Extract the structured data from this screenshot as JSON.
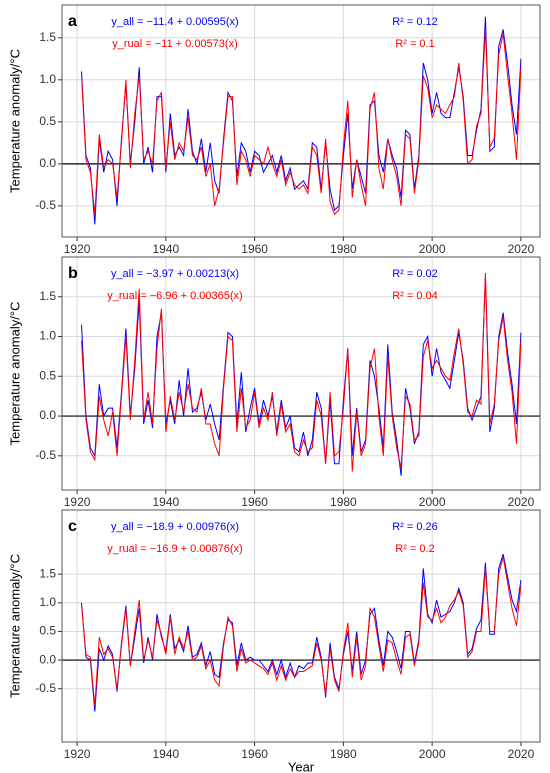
{
  "chart_data": [
    {
      "type": "line",
      "label": "a",
      "ylabel": "Temperature anomaly/°C",
      "x": [
        1921,
        1922,
        1923,
        1924,
        1925,
        1926,
        1927,
        1928,
        1929,
        1930,
        1931,
        1932,
        1933,
        1934,
        1935,
        1936,
        1937,
        1938,
        1939,
        1940,
        1941,
        1942,
        1943,
        1944,
        1945,
        1946,
        1947,
        1948,
        1949,
        1950,
        1951,
        1952,
        1953,
        1954,
        1955,
        1956,
        1957,
        1958,
        1959,
        1960,
        1961,
        1962,
        1963,
        1964,
        1965,
        1966,
        1967,
        1968,
        1969,
        1970,
        1971,
        1972,
        1973,
        1974,
        1975,
        1976,
        1977,
        1978,
        1979,
        1980,
        1981,
        1982,
        1983,
        1984,
        1985,
        1986,
        1987,
        1988,
        1989,
        1990,
        1991,
        1992,
        1993,
        1994,
        1995,
        1996,
        1997,
        1998,
        1999,
        2000,
        2001,
        2002,
        2003,
        2004,
        2005,
        2006,
        2007,
        2008,
        2009,
        2010,
        2011,
        2012,
        2013,
        2014,
        2015,
        2016,
        2017,
        2018,
        2019,
        2020
      ],
      "series": [
        {
          "name": "y_all",
          "color": "#0000ff",
          "values": [
            1.1,
            0.1,
            -0.05,
            -0.72,
            0.3,
            -0.1,
            0.15,
            0.05,
            -0.5,
            0.3,
            0.95,
            0.0,
            0.5,
            1.15,
            0.0,
            0.2,
            -0.1,
            0.8,
            0.8,
            -0.1,
            0.6,
            0.1,
            0.2,
            0.1,
            0.65,
            0.15,
            0.0,
            0.3,
            -0.1,
            0.25,
            -0.2,
            -0.35,
            0.3,
            0.85,
            0.75,
            -0.15,
            0.25,
            0.15,
            -0.1,
            0.15,
            0.1,
            -0.1,
            0.0,
            0.1,
            -0.1,
            0.1,
            -0.2,
            -0.05,
            -0.3,
            -0.25,
            -0.2,
            -0.3,
            0.25,
            0.2,
            -0.3,
            0.25,
            -0.3,
            -0.55,
            -0.5,
            0.1,
            0.6,
            -0.3,
            0.05,
            -0.15,
            -0.35,
            0.7,
            0.75,
            0.1,
            -0.1,
            0.3,
            0.1,
            -0.05,
            -0.4,
            0.4,
            0.35,
            -0.3,
            0.1,
            1.2,
            1.0,
            0.6,
            0.85,
            0.6,
            0.55,
            0.55,
            0.85,
            1.15,
            0.8,
            0.1,
            0.1,
            0.4,
            0.65,
            1.75,
            0.15,
            0.2,
            1.4,
            1.6,
            1.2,
            0.7,
            0.35,
            1.25
          ]
        },
        {
          "name": "y_rual",
          "color": "#ff0000",
          "values": [
            1.05,
            0.05,
            -0.1,
            -0.6,
            0.35,
            -0.05,
            0.05,
            0.0,
            -0.4,
            0.25,
            1.0,
            -0.05,
            0.6,
            1.05,
            0.05,
            0.15,
            0.0,
            0.75,
            0.85,
            -0.05,
            0.5,
            0.05,
            0.25,
            0.15,
            0.55,
            0.1,
            0.05,
            0.2,
            -0.15,
            0.0,
            -0.5,
            -0.3,
            0.25,
            0.8,
            0.8,
            -0.25,
            0.15,
            0.05,
            -0.15,
            0.1,
            0.05,
            0.0,
            0.2,
            0.0,
            -0.15,
            0.05,
            -0.25,
            -0.1,
            -0.25,
            -0.3,
            -0.25,
            -0.35,
            0.2,
            0.1,
            -0.35,
            0.3,
            -0.45,
            -0.6,
            -0.55,
            0.2,
            0.75,
            -0.4,
            0.05,
            -0.25,
            -0.5,
            0.65,
            0.85,
            -0.05,
            -0.3,
            0.3,
            0.05,
            -0.15,
            -0.5,
            0.35,
            0.3,
            -0.35,
            0.05,
            1.05,
            0.9,
            0.55,
            0.7,
            0.65,
            0.6,
            0.7,
            0.8,
            1.2,
            0.75,
            0.0,
            0.05,
            0.45,
            0.6,
            1.6,
            0.2,
            0.3,
            1.3,
            1.55,
            1.05,
            0.6,
            0.05,
            1.15
          ]
        }
      ],
      "annotations": [
        {
          "text": "y_all = −11.4 + 0.00595(x)",
          "color": "#0000ff"
        },
        {
          "text": "y_rual = −11 + 0.00573(x)",
          "color": "#ff0000"
        },
        {
          "text": "R² = 0.12",
          "color": "#0000ff"
        },
        {
          "text": "R² = 0.1",
          "color": "#ff0000"
        }
      ],
      "xlim": [
        1916.6,
        2024.3
      ],
      "xticks": [
        1920,
        1940,
        1960,
        1980,
        2000,
        2020
      ],
      "ylim": [
        -0.87,
        1.89
      ],
      "yticks": [
        -0.5,
        {
          "value": 0,
          "label": "0.0"
        },
        0.5,
        {
          "value": 1,
          "label": "1.0"
        },
        1.5
      ],
      "hline": 0,
      "grid": true
    },
    {
      "type": "line",
      "label": "b",
      "ylabel": "Temperature anomaly/°C",
      "x": [
        1921,
        1922,
        1923,
        1924,
        1925,
        1926,
        1927,
        1928,
        1929,
        1930,
        1931,
        1932,
        1933,
        1934,
        1935,
        1936,
        1937,
        1938,
        1939,
        1940,
        1941,
        1942,
        1943,
        1944,
        1945,
        1946,
        1947,
        1948,
        1949,
        1950,
        1951,
        1952,
        1953,
        1954,
        1955,
        1956,
        1957,
        1958,
        1959,
        1960,
        1961,
        1962,
        1963,
        1964,
        1965,
        1966,
        1967,
        1968,
        1969,
        1970,
        1971,
        1972,
        1973,
        1974,
        1975,
        1976,
        1977,
        1978,
        1979,
        1980,
        1981,
        1982,
        1983,
        1984,
        1985,
        1986,
        1987,
        1988,
        1989,
        1990,
        1991,
        1992,
        1993,
        1994,
        1995,
        1996,
        1997,
        1998,
        1999,
        2000,
        2001,
        2002,
        2003,
        2004,
        2005,
        2006,
        2007,
        2008,
        2009,
        2010,
        2011,
        2012,
        2013,
        2014,
        2015,
        2016,
        2017,
        2018,
        2019,
        2020
      ],
      "series": [
        {
          "name": "y_all",
          "color": "#0000ff",
          "values": [
            1.15,
            0.0,
            -0.4,
            -0.5,
            0.4,
            0.0,
            0.1,
            0.1,
            -0.4,
            0.3,
            1.1,
            0.0,
            0.6,
            1.45,
            -0.1,
            0.2,
            -0.15,
            1.0,
            1.3,
            -0.1,
            0.2,
            -0.1,
            0.45,
            0.0,
            0.6,
            0.05,
            0.1,
            0.3,
            -0.05,
            0.15,
            -0.1,
            -0.3,
            0.4,
            1.05,
            1.0,
            -0.1,
            0.55,
            -0.2,
            0.1,
            0.35,
            -0.1,
            0.2,
            0.0,
            0.25,
            -0.2,
            0.2,
            -0.15,
            0.0,
            -0.4,
            -0.45,
            -0.2,
            -0.5,
            -0.3,
            0.3,
            0.1,
            -0.6,
            0.2,
            -0.6,
            -0.6,
            0.2,
            0.85,
            -0.5,
            0.1,
            -0.45,
            -0.3,
            0.7,
            0.5,
            0.1,
            -0.4,
            0.9,
            0.05,
            -0.3,
            -0.75,
            0.35,
            0.1,
            -0.35,
            -0.2,
            0.9,
            1.0,
            0.5,
            0.85,
            0.55,
            0.45,
            0.35,
            0.7,
            1.05,
            0.7,
            0.1,
            -0.05,
            0.1,
            0.25,
            1.75,
            -0.2,
            0.1,
            1.0,
            1.3,
            0.8,
            0.4,
            -0.1,
            1.05
          ]
        },
        {
          "name": "y_rual",
          "color": "#ff0000",
          "values": [
            0.95,
            -0.05,
            -0.45,
            -0.55,
            0.25,
            -0.05,
            -0.25,
            0.05,
            -0.5,
            0.25,
            1.0,
            -0.05,
            0.7,
            1.6,
            -0.05,
            0.3,
            -0.1,
            0.85,
            1.35,
            -0.2,
            0.25,
            -0.05,
            0.3,
            0.05,
            0.4,
            0.1,
            0.05,
            0.35,
            -0.1,
            -0.1,
            -0.35,
            -0.5,
            0.35,
            1.0,
            0.95,
            -0.2,
            0.35,
            -0.15,
            -0.05,
            0.3,
            -0.15,
            0.1,
            -0.05,
            0.3,
            -0.25,
            0.15,
            -0.2,
            -0.1,
            -0.45,
            -0.5,
            -0.3,
            -0.45,
            -0.4,
            0.2,
            0.0,
            -0.6,
            0.3,
            -0.5,
            -0.45,
            0.1,
            0.85,
            -0.7,
            0.05,
            -0.5,
            -0.35,
            0.6,
            0.85,
            0.0,
            -0.5,
            0.75,
            0.0,
            -0.4,
            -0.65,
            0.25,
            0.15,
            -0.3,
            -0.25,
            0.75,
            0.95,
            0.6,
            0.7,
            0.6,
            0.5,
            0.45,
            0.8,
            1.1,
            0.65,
            0.05,
            0.0,
            0.2,
            0.15,
            1.8,
            -0.1,
            0.15,
            0.95,
            1.25,
            0.7,
            0.3,
            -0.35,
            0.95
          ]
        }
      ],
      "annotations": [
        {
          "text": "y_all = −3.97 + 0.00213(x)",
          "color": "#0000ff"
        },
        {
          "text": "y_rual = −6.96 + 0.00365(x)",
          "color": "#ff0000"
        },
        {
          "text": "R² = 0.02",
          "color": "#0000ff"
        },
        {
          "text": "R² = 0.04",
          "color": "#ff0000"
        }
      ],
      "xlim": [
        1916.6,
        2024.3
      ],
      "xticks": [
        1920,
        1940,
        1960,
        1980,
        2000,
        2020
      ],
      "ylim": [
        -0.93,
        2.0
      ],
      "yticks": [
        -0.5,
        {
          "value": 0,
          "label": "0.0"
        },
        0.5,
        {
          "value": 1,
          "label": "1.0"
        },
        1.5
      ],
      "hline": 0,
      "grid": true
    },
    {
      "type": "line",
      "label": "c",
      "ylabel": "Temperature anomaly/°C",
      "xlabel": "Year",
      "x": [
        1921,
        1922,
        1923,
        1924,
        1925,
        1926,
        1927,
        1928,
        1929,
        1930,
        1931,
        1932,
        1933,
        1934,
        1935,
        1936,
        1937,
        1938,
        1939,
        1940,
        1941,
        1942,
        1943,
        1944,
        1945,
        1946,
        1947,
        1948,
        1949,
        1950,
        1951,
        1952,
        1953,
        1954,
        1955,
        1956,
        1957,
        1958,
        1959,
        1960,
        1961,
        1962,
        1963,
        1964,
        1965,
        1966,
        1967,
        1968,
        1969,
        1970,
        1971,
        1972,
        1973,
        1974,
        1975,
        1976,
        1977,
        1978,
        1979,
        1980,
        1981,
        1982,
        1983,
        1984,
        1985,
        1986,
        1987,
        1988,
        1989,
        1990,
        1991,
        1992,
        1993,
        1994,
        1995,
        1996,
        1997,
        1998,
        1999,
        2000,
        2001,
        2002,
        2003,
        2004,
        2005,
        2006,
        2007,
        2008,
        2009,
        2010,
        2011,
        2012,
        2013,
        2014,
        2015,
        2016,
        2017,
        2018,
        2019,
        2020
      ],
      "series": [
        {
          "name": "y_all",
          "color": "#0000ff",
          "values": [
            1.0,
            0.05,
            0.0,
            -0.9,
            0.2,
            0.0,
            0.25,
            0.1,
            -0.55,
            0.3,
            0.95,
            -0.1,
            0.4,
            0.9,
            -0.05,
            0.4,
            0.0,
            0.8,
            0.4,
            0.15,
            0.8,
            0.2,
            0.35,
            0.15,
            0.6,
            0.05,
            0.1,
            0.3,
            -0.1,
            0.15,
            -0.25,
            -0.3,
            0.3,
            0.7,
            0.65,
            -0.1,
            0.3,
            0.0,
            0.05,
            0.0,
            0.0,
            -0.1,
            -0.2,
            0.0,
            -0.25,
            0.0,
            -0.3,
            -0.05,
            -0.3,
            -0.1,
            -0.15,
            -0.05,
            -0.05,
            0.4,
            0.05,
            -0.65,
            0.3,
            -0.3,
            -0.5,
            0.1,
            0.5,
            -0.2,
            0.5,
            -0.25,
            0.0,
            0.8,
            0.9,
            0.35,
            -0.1,
            0.5,
            0.4,
            0.15,
            -0.15,
            0.5,
            0.5,
            -0.05,
            0.35,
            1.6,
            0.8,
            0.65,
            1.05,
            0.75,
            0.8,
            0.85,
            1.0,
            1.25,
            1.0,
            0.1,
            0.2,
            0.55,
            0.7,
            1.7,
            0.45,
            0.45,
            1.6,
            1.85,
            1.45,
            1.05,
            0.85,
            1.4
          ]
        },
        {
          "name": "y_rual",
          "color": "#ff0000",
          "values": [
            0.95,
            0.1,
            0.05,
            -0.8,
            0.4,
            0.1,
            0.2,
            0.05,
            -0.5,
            0.25,
            0.9,
            -0.1,
            0.5,
            1.05,
            0.0,
            0.35,
            0.05,
            0.7,
            0.45,
            0.1,
            0.75,
            0.1,
            0.4,
            0.2,
            0.5,
            0.0,
            0.05,
            0.25,
            -0.15,
            0.0,
            -0.35,
            -0.45,
            0.25,
            0.75,
            0.6,
            -0.2,
            0.2,
            -0.05,
            0.0,
            -0.05,
            -0.1,
            -0.15,
            -0.25,
            -0.05,
            -0.35,
            -0.1,
            -0.35,
            -0.15,
            -0.3,
            -0.2,
            -0.2,
            -0.15,
            -0.1,
            0.3,
            0.0,
            -0.6,
            0.2,
            -0.35,
            -0.55,
            0.15,
            0.65,
            -0.3,
            0.4,
            -0.35,
            -0.1,
            0.9,
            0.75,
            0.25,
            -0.2,
            0.35,
            0.3,
            0.0,
            -0.25,
            0.4,
            0.45,
            -0.1,
            0.3,
            1.35,
            0.75,
            0.7,
            0.9,
            0.65,
            0.75,
            0.95,
            1.05,
            1.2,
            0.95,
            0.05,
            0.15,
            0.5,
            0.5,
            1.6,
            0.5,
            0.5,
            1.5,
            1.8,
            1.35,
            0.9,
            0.6,
            1.3
          ]
        }
      ],
      "annotations": [
        {
          "text": "y_all = −18.9 + 0.00976(x)",
          "color": "#0000ff"
        },
        {
          "text": "y_rual = −16.9 + 0.00876(x)",
          "color": "#ff0000"
        },
        {
          "text": "R² = 0.26",
          "color": "#0000ff"
        },
        {
          "text": "R² = 0.2",
          "color": "#ff0000"
        }
      ],
      "xlim": [
        1916.6,
        2024.3
      ],
      "xticks": [
        1920,
        1940,
        1960,
        1980,
        2000,
        2020
      ],
      "ylim": [
        -1.43,
        2.62
      ],
      "yticks": [
        -0.5,
        {
          "value": 0,
          "label": "0.0"
        },
        0.5,
        {
          "value": 1,
          "label": "1.0"
        },
        1.5
      ],
      "hline": 0,
      "grid": true
    }
  ]
}
